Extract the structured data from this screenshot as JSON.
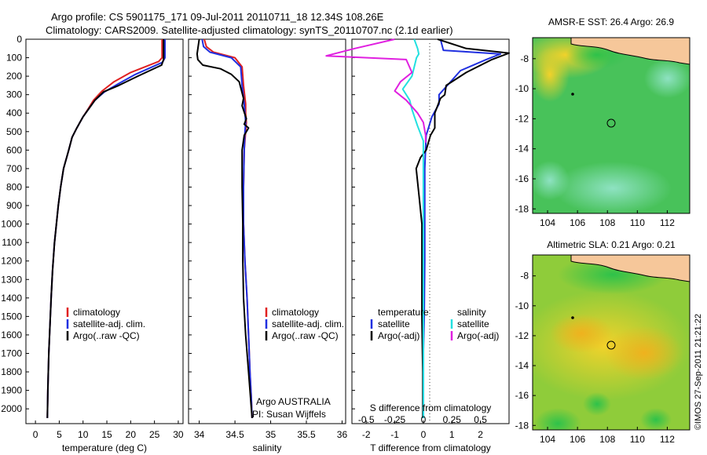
{
  "header": {
    "title_line1": "Argo profile: CS 5901175_171 09-Jul-2011 20110711_18 12.34S 108.26E",
    "title_line2": "Climatology: CARS2009. Satellite-adjusted climatology: synTS_20110707.nc (2.1d earlier)"
  },
  "colors": {
    "climatology": "#e02020",
    "satellite": "#1f2fe0",
    "argo": "#000000",
    "satellite_salinity": "#22e0e0",
    "argo_salinity": "#e020e0"
  },
  "depth_axis": {
    "ticks": [
      "0",
      "100",
      "200",
      "300",
      "400",
      "500",
      "600",
      "700",
      "800",
      "900",
      "1000",
      "1100",
      "1200",
      "1300",
      "1400",
      "1500",
      "1600",
      "1700",
      "1800",
      "1900",
      "2000"
    ],
    "ylim": [
      0,
      2080
    ]
  },
  "chart_data": [
    {
      "type": "line",
      "xlabel": "temperature (deg C)",
      "ylabel": "",
      "xlim": [
        -2,
        31
      ],
      "ylim": [
        0,
        2080
      ],
      "xticks": [
        "0",
        "5",
        "10",
        "15",
        "20",
        "25",
        "30"
      ],
      "legend": {
        "placement": "bottom-center",
        "entries": [
          "climatology",
          "satellite-adj. clim.",
          "Argo(..raw -QC)"
        ]
      },
      "series": [
        {
          "name": "climatology",
          "color": "#e02020",
          "x": [
            26.6,
            26.6,
            25.9,
            20,
            16.5,
            14,
            12.2,
            11,
            10,
            8.7,
            7.7,
            7,
            5.9,
            5.3,
            4.8,
            4.4,
            4,
            3.6,
            3.3,
            3.05,
            2.8,
            2.6,
            2.5
          ],
          "y": [
            0,
            100,
            120,
            180,
            230,
            280,
            330,
            380,
            420,
            480,
            530,
            600,
            700,
            800,
            900,
            1000,
            1100,
            1250,
            1400,
            1550,
            1700,
            1900,
            2050
          ]
        },
        {
          "name": "satellite-adj. clim.",
          "color": "#1f2fe0",
          "x": [
            27.2,
            27.2,
            26.7,
            21,
            17.5,
            14.5,
            12.5,
            11.1,
            10,
            8.7,
            7.7,
            7,
            5.9,
            5.3,
            4.8,
            4.4,
            4,
            3.6,
            3.3,
            3.05,
            2.8,
            2.6,
            2.5
          ],
          "y": [
            0,
            100,
            125,
            190,
            240,
            285,
            330,
            380,
            420,
            480,
            530,
            600,
            700,
            800,
            900,
            1000,
            1100,
            1250,
            1400,
            1550,
            1700,
            1900,
            2050
          ]
        },
        {
          "name": "Argo(..raw -QC)",
          "color": "#000000",
          "x": [
            26.9,
            26.9,
            26.5,
            21.5,
            17.5,
            14.3,
            12.5,
            11.1,
            10,
            8.7,
            7.7,
            7,
            5.9,
            5.3,
            4.8,
            4.4,
            4,
            3.6,
            3.3,
            3.05,
            2.8,
            2.6,
            2.5
          ],
          "y": [
            0,
            110,
            140,
            200,
            250,
            285,
            330,
            380,
            420,
            480,
            530,
            600,
            700,
            800,
            900,
            1000,
            1100,
            1250,
            1400,
            1550,
            1700,
            1900,
            2050
          ]
        }
      ]
    },
    {
      "type": "line",
      "xlabel": "salinity",
      "ylabel": "",
      "xlim": [
        33.85,
        36.05
      ],
      "ylim": [
        0,
        2080
      ],
      "xticks": [
        "34",
        "34.5",
        "35",
        "35.5",
        "36"
      ],
      "legend": {
        "placement": "bottom-center",
        "entries": [
          "climatology",
          "satellite-adj. clim.",
          "Argo(..raw -QC)"
        ]
      },
      "annotations": [
        "Argo AUSTRALIA",
        "PI: Susan Wijffels"
      ],
      "series": [
        {
          "name": "climatology",
          "color": "#e02020",
          "x": [
            34.07,
            34.1,
            34.2,
            34.5,
            34.6,
            34.62,
            34.65,
            34.65,
            34.66,
            34.65,
            34.63,
            34.62,
            34.62,
            34.64,
            34.67,
            34.69,
            34.71,
            34.73,
            34.74
          ],
          "y": [
            0,
            40,
            70,
            100,
            150,
            250,
            350,
            400,
            450,
            500,
            600,
            800,
            1000,
            1200,
            1400,
            1600,
            1800,
            1950,
            2050
          ]
        },
        {
          "name": "satellite-adj. clim.",
          "color": "#1f2fe0",
          "x": [
            34.04,
            34.06,
            34.15,
            34.45,
            34.58,
            34.6,
            34.63,
            34.64,
            34.65,
            34.64,
            34.63,
            34.62,
            34.62,
            34.64,
            34.67,
            34.69,
            34.71,
            34.73,
            34.74
          ],
          "y": [
            0,
            40,
            70,
            100,
            150,
            250,
            350,
            400,
            450,
            500,
            600,
            800,
            1000,
            1200,
            1400,
            1600,
            1800,
            1950,
            2050
          ]
        },
        {
          "name": "Argo(..raw -QC)",
          "color": "#000000",
          "x": [
            34.0,
            33.97,
            33.98,
            34.05,
            34.3,
            34.45,
            34.56,
            34.62,
            34.6,
            34.66,
            34.63,
            34.69,
            34.63,
            34.6,
            34.6,
            34.61,
            34.61,
            34.62,
            34.65,
            34.69,
            34.72,
            34.74
          ],
          "y": [
            0,
            80,
            110,
            140,
            160,
            190,
            230,
            320,
            360,
            430,
            460,
            480,
            520,
            600,
            800,
            1000,
            1200,
            1400,
            1600,
            1800,
            1950,
            2050
          ]
        }
      ]
    },
    {
      "type": "line",
      "xlabel": "T difference from climatology",
      "xlabel_top": "S difference from climatology",
      "ylabel": "",
      "xlim": [
        -2.5,
        3.0
      ],
      "ylim": [
        0,
        2080
      ],
      "xticks": [
        "-2",
        "-1",
        "0",
        "1",
        "2"
      ],
      "xticks_top": [
        "-0.5",
        "-0.25",
        "0",
        "0.25",
        "0.5"
      ],
      "legend": {
        "placement": "bottom",
        "headers": [
          "temperature",
          "salinity"
        ],
        "entries": [
          "satellite",
          "Argo(-adj)",
          "satellite",
          "Argo(-adj)"
        ]
      },
      "series": [
        {
          "name": "satellite",
          "quantity": "temperature",
          "color": "#1f2fe0",
          "x": [
            0.6,
            0.7,
            2.7,
            2.2,
            1.3,
            0.9,
            0.55,
            0.55,
            0.3,
            0.2,
            0.1,
            0.05,
            0.05,
            0.05,
            0.03,
            0,
            0,
            0,
            0
          ],
          "y": [
            0,
            60,
            80,
            110,
            170,
            240,
            300,
            350,
            420,
            470,
            520,
            700,
            900,
            1200,
            1500,
            1700,
            1850,
            1950,
            2050
          ]
        },
        {
          "name": "Argo(-adj)",
          "quantity": "temperature",
          "color": "#000000",
          "x": [
            0.5,
            1.5,
            3.0,
            2.4,
            1.5,
            0.8,
            0.75,
            0.6,
            0.4,
            0.4,
            0.25,
            0.1,
            -0.1,
            -0.25,
            -0.15,
            -0.05,
            -0.05,
            -0.02,
            -0.02
          ],
          "y": [
            0,
            50,
            75,
            110,
            180,
            250,
            300,
            320,
            400,
            480,
            520,
            600,
            640,
            700,
            850,
            1000,
            1500,
            1800,
            2050
          ]
        },
        {
          "name": "satellite",
          "quantity": "salinity",
          "color": "#22e0e0",
          "x": [
            -0.08,
            -0.05,
            -0.04,
            -0.06,
            -0.1,
            -0.18,
            -0.12,
            -0.1,
            -0.05,
            0,
            0,
            0,
            0
          ],
          "y": [
            0,
            50,
            80,
            100,
            200,
            270,
            330,
            380,
            470,
            550,
            800,
            1400,
            2050
          ]
        },
        {
          "name": "Argo(-adj)",
          "quantity": "salinity",
          "color": "#e020e0",
          "x": [
            -0.25,
            -0.6,
            -0.85,
            -0.15,
            -0.1,
            -0.2,
            -0.25,
            -0.15,
            -0.05,
            0,
            0.02,
            0.02
          ],
          "y": [
            0,
            50,
            90,
            110,
            180,
            230,
            280,
            330,
            400,
            450,
            520,
            560
          ]
        }
      ]
    }
  ],
  "maps": {
    "sst": {
      "title": "AMSR-E SST: 26.4 Argo: 26.9",
      "xticks": [
        "104",
        "106",
        "108",
        "110",
        "112"
      ],
      "yticks": [
        "-8",
        "-10",
        "-12",
        "-14",
        "-16",
        "-18"
      ]
    },
    "sla": {
      "title": "Altimetric SLA: 0.21 Argo: 0.21",
      "xticks": [
        "104",
        "106",
        "108",
        "110",
        "112"
      ],
      "yticks": [
        "-8",
        "-10",
        "-12",
        "-14",
        "-16",
        "-18"
      ]
    },
    "argo_position": {
      "lon": 108.26,
      "lat": -12.34
    }
  },
  "footer": {
    "credit": "©IMOS 27-Sep-2011 21:21:22"
  }
}
